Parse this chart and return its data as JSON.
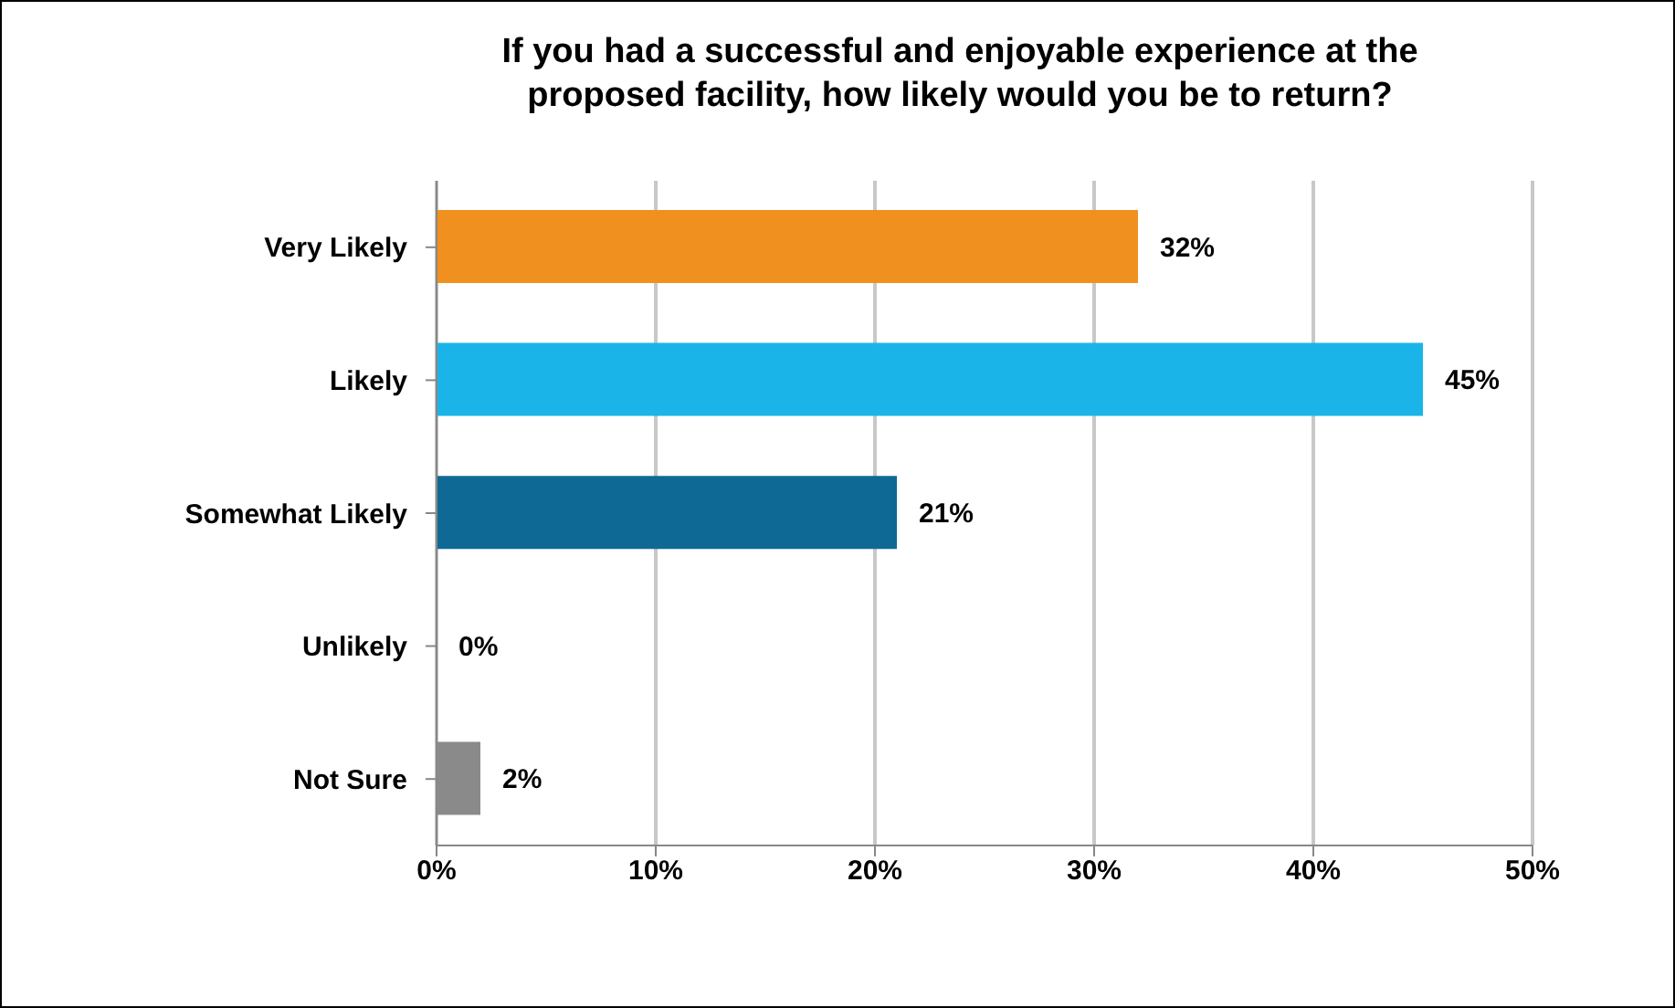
{
  "chart_data": {
    "type": "bar",
    "orientation": "horizontal",
    "title": "If you had a successful and enjoyable experience at the proposed facility, how likely would you be to return?",
    "categories": [
      "Very Likely",
      "Likely",
      "Somewhat Likely",
      "Unlikely",
      "Not Sure"
    ],
    "values": [
      32,
      45,
      21,
      0,
      2
    ],
    "colors": [
      "#f0901e",
      "#1ab4e8",
      "#0e6a94",
      "#707070",
      "#8a8a8a"
    ],
    "value_labels": [
      "32%",
      "45%",
      "21%",
      "0%",
      "2%"
    ],
    "xlim": [
      0,
      50
    ],
    "xticks": [
      {
        "value": 0,
        "label": "0%"
      },
      {
        "value": 10,
        "label": "10%"
      },
      {
        "value": 20,
        "label": "20%"
      },
      {
        "value": 30,
        "label": "30%"
      },
      {
        "value": 40,
        "label": "40%"
      },
      {
        "value": 50,
        "label": "50%"
      }
    ],
    "grid": "x",
    "legend": false
  }
}
